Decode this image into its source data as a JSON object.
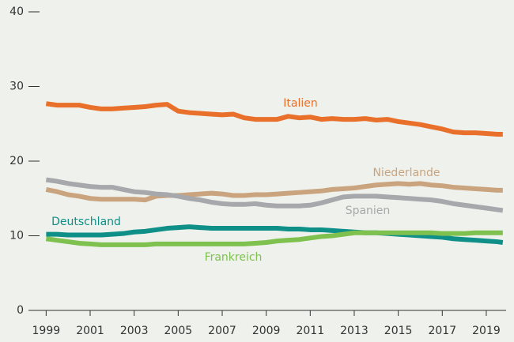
{
  "chart_data": {
    "type": "line",
    "x": [
      1999,
      1999.5,
      2000,
      2000.5,
      2001,
      2001.5,
      2002,
      2002.5,
      2003,
      2003.5,
      2004,
      2004.5,
      2005,
      2005.5,
      2006,
      2006.5,
      2007,
      2007.5,
      2008,
      2008.5,
      2009,
      2009.5,
      2010,
      2010.5,
      2011,
      2011.5,
      2012,
      2012.5,
      2013,
      2013.5,
      2014,
      2014.5,
      2015,
      2015.5,
      2016,
      2016.5,
      2017,
      2017.5,
      2018,
      2018.5,
      2019,
      2019.5,
      2019.75
    ],
    "series": [
      {
        "name": "Italien",
        "color": "#e8702a",
        "values": [
          27.7,
          27.5,
          27.5,
          27.5,
          27.2,
          27.0,
          27.0,
          27.1,
          27.2,
          27.3,
          27.5,
          27.6,
          26.7,
          26.5,
          26.4,
          26.3,
          26.2,
          26.3,
          25.8,
          25.6,
          25.6,
          25.6,
          26.0,
          25.8,
          25.9,
          25.6,
          25.7,
          25.6,
          25.6,
          25.7,
          25.5,
          25.6,
          25.3,
          25.1,
          24.9,
          24.6,
          24.3,
          23.9,
          23.8,
          23.8,
          23.7,
          23.6,
          23.6
        ]
      },
      {
        "name": "Niederlande",
        "color": "#c9a47e",
        "values": [
          16.2,
          15.9,
          15.5,
          15.3,
          15.0,
          14.9,
          14.9,
          14.9,
          14.9,
          14.8,
          15.3,
          15.4,
          15.4,
          15.5,
          15.6,
          15.7,
          15.6,
          15.4,
          15.4,
          15.5,
          15.5,
          15.6,
          15.7,
          15.8,
          15.9,
          16.0,
          16.2,
          16.3,
          16.4,
          16.6,
          16.8,
          16.9,
          17.0,
          16.9,
          17.0,
          16.8,
          16.7,
          16.5,
          16.4,
          16.3,
          16.2,
          16.1,
          16.1
        ]
      },
      {
        "name": "Spanien",
        "color": "#a6a8ab",
        "values": [
          17.5,
          17.3,
          17.0,
          16.8,
          16.6,
          16.5,
          16.5,
          16.2,
          15.9,
          15.8,
          15.6,
          15.5,
          15.3,
          15.0,
          14.8,
          14.5,
          14.3,
          14.2,
          14.2,
          14.3,
          14.1,
          14.0,
          14.0,
          14.0,
          14.1,
          14.4,
          14.8,
          15.2,
          15.3,
          15.3,
          15.3,
          15.2,
          15.1,
          15.0,
          14.9,
          14.8,
          14.6,
          14.3,
          14.1,
          13.9,
          13.7,
          13.5,
          13.4
        ]
      },
      {
        "name": "Deutschland",
        "color": "#0e8f87",
        "values": [
          10.2,
          10.2,
          10.1,
          10.1,
          10.1,
          10.1,
          10.2,
          10.3,
          10.5,
          10.6,
          10.8,
          11.0,
          11.1,
          11.2,
          11.1,
          11.0,
          11.0,
          11.0,
          11.0,
          11.0,
          11.0,
          11.0,
          10.9,
          10.9,
          10.8,
          10.8,
          10.7,
          10.6,
          10.5,
          10.4,
          10.4,
          10.3,
          10.2,
          10.1,
          10.0,
          9.9,
          9.8,
          9.6,
          9.5,
          9.4,
          9.3,
          9.2,
          9.1
        ]
      },
      {
        "name": "Frankreich",
        "color": "#7ec14e",
        "values": [
          9.6,
          9.4,
          9.2,
          9.0,
          8.9,
          8.8,
          8.8,
          8.8,
          8.8,
          8.8,
          8.9,
          8.9,
          8.9,
          8.9,
          8.9,
          8.9,
          8.9,
          8.9,
          8.9,
          9.0,
          9.1,
          9.3,
          9.4,
          9.5,
          9.7,
          9.9,
          10.0,
          10.2,
          10.4,
          10.4,
          10.4,
          10.4,
          10.4,
          10.4,
          10.4,
          10.4,
          10.3,
          10.3,
          10.3,
          10.4,
          10.4,
          10.4,
          10.4
        ]
      }
    ],
    "xlim": [
      1998.7,
      2019.9
    ],
    "xticks": [
      1999,
      2001,
      2003,
      2005,
      2007,
      2009,
      2011,
      2013,
      2015,
      2017,
      2019
    ],
    "ylim": [
      0,
      40
    ],
    "yticks": [
      0,
      10,
      20,
      30,
      40
    ]
  }
}
